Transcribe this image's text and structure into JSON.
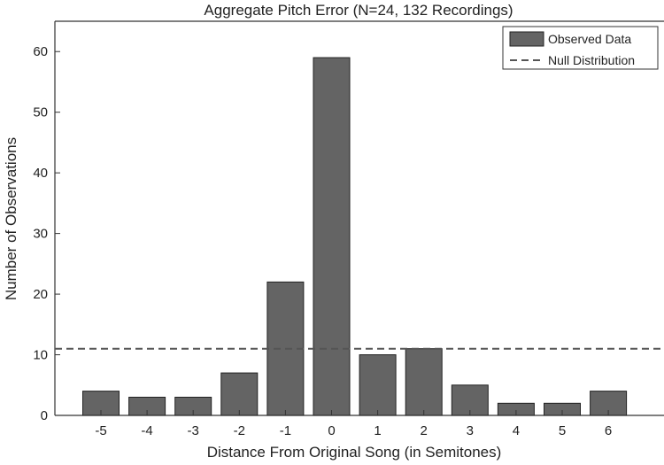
{
  "chart_data": {
    "type": "bar",
    "title": "Aggregate Pitch Error (N=24, 132 Recordings)",
    "xlabel": "Distance From Original Song (in Semitones)",
    "ylabel": "Number of Observations",
    "categories": [
      "-5",
      "-4",
      "-3",
      "-2",
      "-1",
      "0",
      "1",
      "2",
      "3",
      "4",
      "5",
      "6"
    ],
    "series": [
      {
        "name": "Observed Data",
        "values": [
          4,
          3,
          3,
          7,
          22,
          59,
          10,
          11,
          5,
          2,
          2,
          4
        ]
      }
    ],
    "reference_lines": [
      {
        "name": "Null Distribution",
        "y": 11,
        "style": "dashed"
      }
    ],
    "ylim": [
      0,
      65
    ],
    "yticks": [
      0,
      10,
      20,
      30,
      40,
      50,
      60
    ],
    "grid": false,
    "legend_position": "top-right",
    "colors": {
      "bar": "#646464",
      "bar_edge": "#222222",
      "null_line": "#555555",
      "axis": "#333333"
    }
  }
}
